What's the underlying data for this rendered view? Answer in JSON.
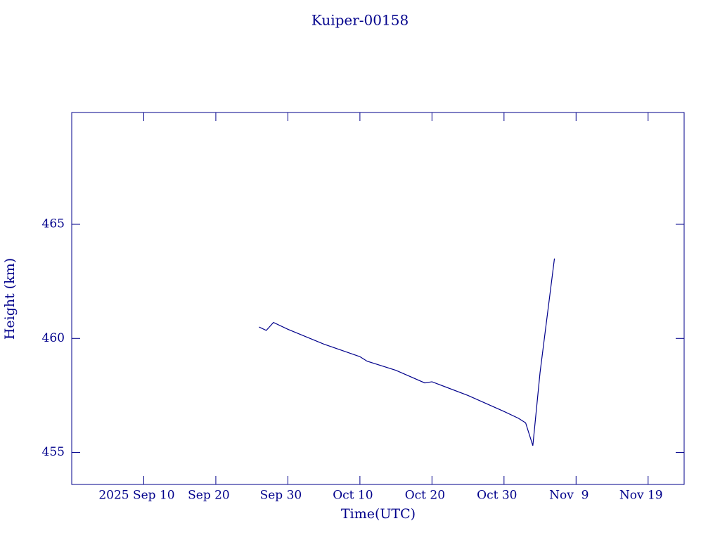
{
  "chart_data": {
    "type": "line",
    "title": "Kuiper-00158",
    "xlabel": "Time(UTC)",
    "ylabel": "Height (km)",
    "color": "#00008b",
    "x": [
      "2025-09-26",
      "2025-09-27",
      "2025-09-28",
      "2025-09-30",
      "2025-10-05",
      "2025-10-10",
      "2025-10-11",
      "2025-10-15",
      "2025-10-19",
      "2025-10-20",
      "2025-10-25",
      "2025-10-30",
      "2025-11-01",
      "2025-11-02",
      "2025-11-03",
      "2025-11-04",
      "2025-11-05",
      "2025-11-06"
    ],
    "values": [
      460.5,
      460.35,
      460.7,
      460.4,
      459.75,
      459.2,
      459.0,
      458.6,
      458.05,
      458.1,
      457.5,
      456.8,
      456.5,
      456.3,
      455.3,
      458.5,
      461.0,
      463.5
    ],
    "xlim": [
      "2025-08-31",
      "2025-11-24"
    ],
    "xticks": [
      {
        "value": "2025-09-10",
        "label": "2025 Sep 10"
      },
      {
        "value": "2025-09-20",
        "label": "Sep 20"
      },
      {
        "value": "2025-09-30",
        "label": "Sep 30"
      },
      {
        "value": "2025-10-10",
        "label": "Oct 10"
      },
      {
        "value": "2025-10-20",
        "label": "Oct 20"
      },
      {
        "value": "2025-10-30",
        "label": "Oct 30"
      },
      {
        "value": "2025-11-09",
        "label": "Nov  9"
      },
      {
        "value": "2025-11-19",
        "label": "Nov 19"
      }
    ],
    "ylim": [
      453.6,
      469.9
    ],
    "yticks": [
      455,
      460,
      465
    ]
  }
}
